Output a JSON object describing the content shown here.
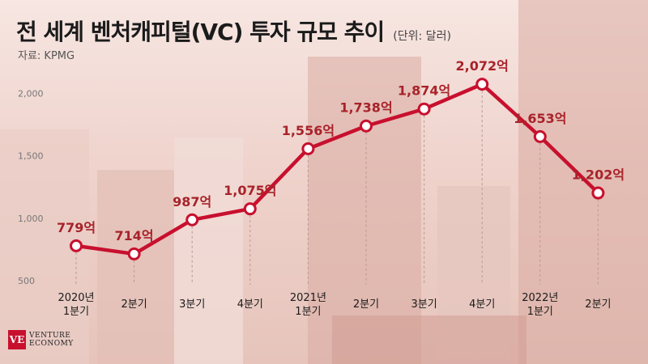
{
  "header": {
    "title": "전 세계 벤처캐피털(VC) 투자 규모 추이",
    "unit": "(단위: 달러)",
    "source": "자료: KPMG"
  },
  "branding": {
    "logo_mark": "VE",
    "logo_line1": "VENTURE",
    "logo_line2": "ECONOMY"
  },
  "colors": {
    "line": "#c8102e",
    "label": "#a8232a",
    "text": "#1b1b1b"
  },
  "chart_data": {
    "type": "line",
    "categories": [
      [
        "2020년",
        "1분기"
      ],
      [
        "2분기"
      ],
      [
        "3분기"
      ],
      [
        "4분기"
      ],
      [
        "2021년",
        "1분기"
      ],
      [
        "2분기"
      ],
      [
        "3분기"
      ],
      [
        "4분기"
      ],
      [
        "2022년",
        "1분기"
      ],
      [
        "2분기"
      ]
    ],
    "values": [
      779,
      714,
      987,
      1075,
      1556,
      1738,
      1874,
      2072,
      1653,
      1202
    ],
    "data_labels": [
      "779억",
      "714억",
      "987억",
      "1,075억",
      "1,556억",
      "1,738억",
      "1,874억",
      "2,072억",
      "1,653억",
      "1,202억"
    ],
    "yticks": [
      500,
      1000,
      1500,
      2000
    ],
    "ytick_labels": [
      "500",
      "1,000",
      "1,500",
      "2,000"
    ],
    "ylim": [
      500,
      2100
    ],
    "grid": "vertical-dashed",
    "legend": "none"
  }
}
